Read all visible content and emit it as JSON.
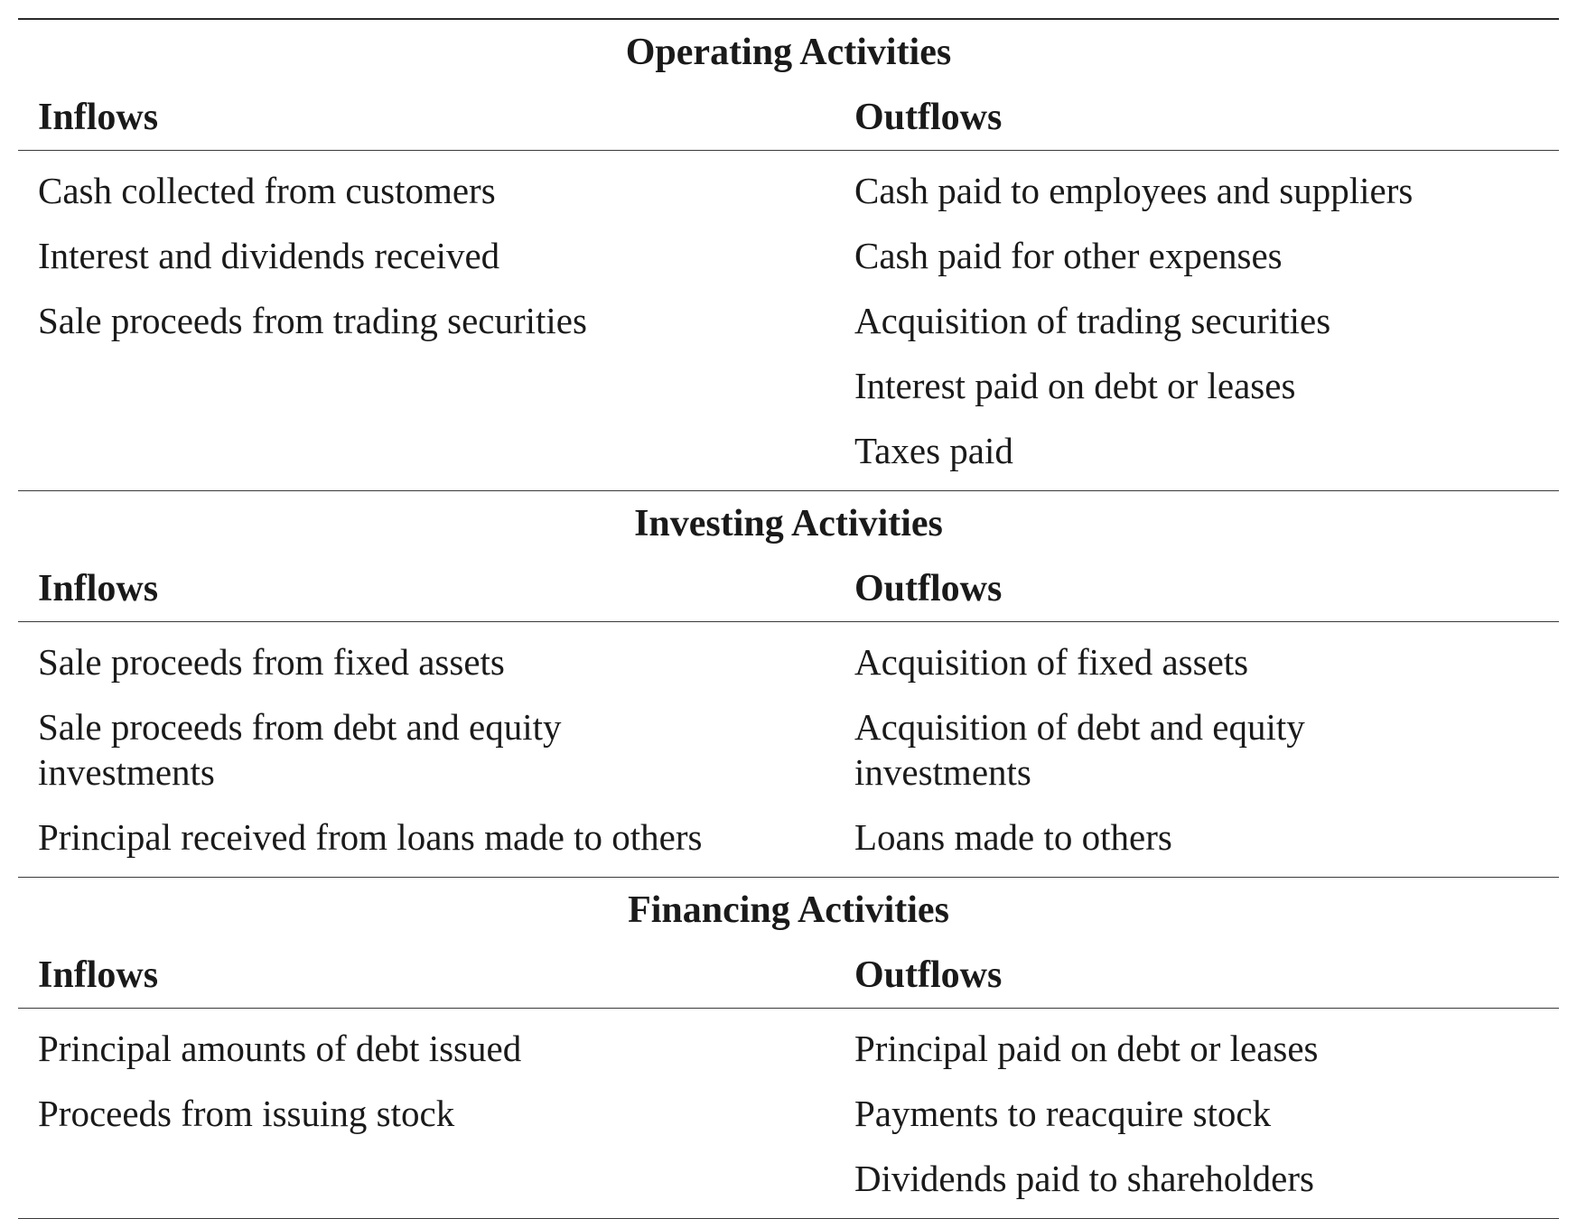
{
  "sections": [
    {
      "title": "Operating Activities",
      "inflows_label": "Inflows",
      "outflows_label": "Outflows",
      "inflows": [
        "Cash collected from customers",
        "Interest and dividends received",
        "Sale proceeds from trading securities"
      ],
      "outflows": [
        "Cash paid to employees and suppliers",
        "Cash paid for other expenses",
        "Acquisition of trading securities",
        "Interest paid on debt or leases",
        "Taxes paid"
      ]
    },
    {
      "title": "Investing Activities",
      "inflows_label": "Inflows",
      "outflows_label": "Outflows",
      "inflows": [
        "Sale proceeds from fixed assets",
        "Sale proceeds from debt and equity investments",
        "Principal received from loans made to others"
      ],
      "outflows": [
        "Acquisition of fixed assets",
        "Acquisition of debt and equity investments",
        "Loans made to others"
      ]
    },
    {
      "title": "Financing Activities",
      "inflows_label": "Inflows",
      "outflows_label": "Outflows",
      "inflows": [
        "Principal amounts of debt issued",
        "Proceeds from issuing stock"
      ],
      "outflows": [
        "Principal paid on debt or leases",
        "Payments to reacquire stock",
        "Dividends paid to shareholders"
      ]
    }
  ]
}
